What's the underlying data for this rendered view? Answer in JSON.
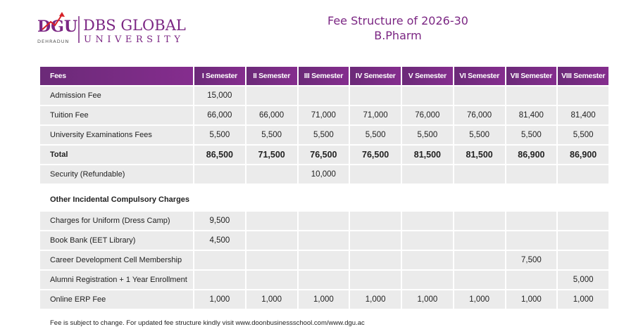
{
  "header": {
    "logo_mark": "DGU",
    "logo_city": "DEHRADUN",
    "logo_name_line1": "DBS GLOBAL",
    "logo_name_line2": "UNIVERSITY",
    "title": "Fee Structure of 2026-30",
    "subtitle": "B.Pharm"
  },
  "colors": {
    "accent": "#6e2b7a",
    "title": "#7b2683",
    "cell": "#ebebeb"
  },
  "table": {
    "columns": [
      "Fees",
      "I Semester",
      "II Semester",
      "III Semester",
      "IV Semester",
      "V Semester",
      "VI Semester",
      "VII Semester",
      "VIII Semester"
    ],
    "rows": [
      {
        "label": "Admission Fee",
        "values": [
          "15,000",
          "",
          "",
          "",
          "",
          "",
          "",
          ""
        ]
      },
      {
        "label": "Tuition Fee",
        "values": [
          "66,000",
          "66,000",
          "71,000",
          "71,000",
          "76,000",
          "76,000",
          "81,400",
          "81,400"
        ]
      },
      {
        "label": "University Examinations Fees",
        "values": [
          "5,500",
          "5,500",
          "5,500",
          "5,500",
          "5,500",
          "5,500",
          "5,500",
          "5,500"
        ]
      },
      {
        "label": "Total",
        "values": [
          "86,500",
          "71,500",
          "76,500",
          "76,500",
          "81,500",
          "81,500",
          "86,900",
          "86,900"
        ]
      },
      {
        "label": "Security (Refundable)",
        "values": [
          "",
          "",
          "10,000",
          "",
          "",
          "",
          "",
          ""
        ]
      }
    ],
    "section_label": "Other Incidental Compulsory Charges",
    "other_rows": [
      {
        "label": "Charges for Uniform (Dress Camp)",
        "values": [
          "9,500",
          "",
          "",
          "",
          "",
          "",
          "",
          ""
        ]
      },
      {
        "label": "Book Bank (EET Library)",
        "values": [
          "4,500",
          "",
          "",
          "",
          "",
          "",
          "",
          ""
        ]
      },
      {
        "label": "Career Development Cell Membership",
        "values": [
          "",
          "",
          "",
          "",
          "",
          "",
          "7,500",
          ""
        ]
      },
      {
        "label": "Alumni Registration +  1 Year Enrollment",
        "values": [
          "",
          "",
          "",
          "",
          "",
          "",
          "",
          "5,000"
        ]
      },
      {
        "label": "Online ERP Fee",
        "values": [
          "1,000",
          "1,000",
          "1,000",
          "1,000",
          "1,000",
          "1,000",
          "1,000",
          "1,000"
        ]
      }
    ]
  },
  "footnote": "Fee is subject to change. For updated fee structure kindly visit www.doonbusinessschool.com/www.dgu.ac"
}
